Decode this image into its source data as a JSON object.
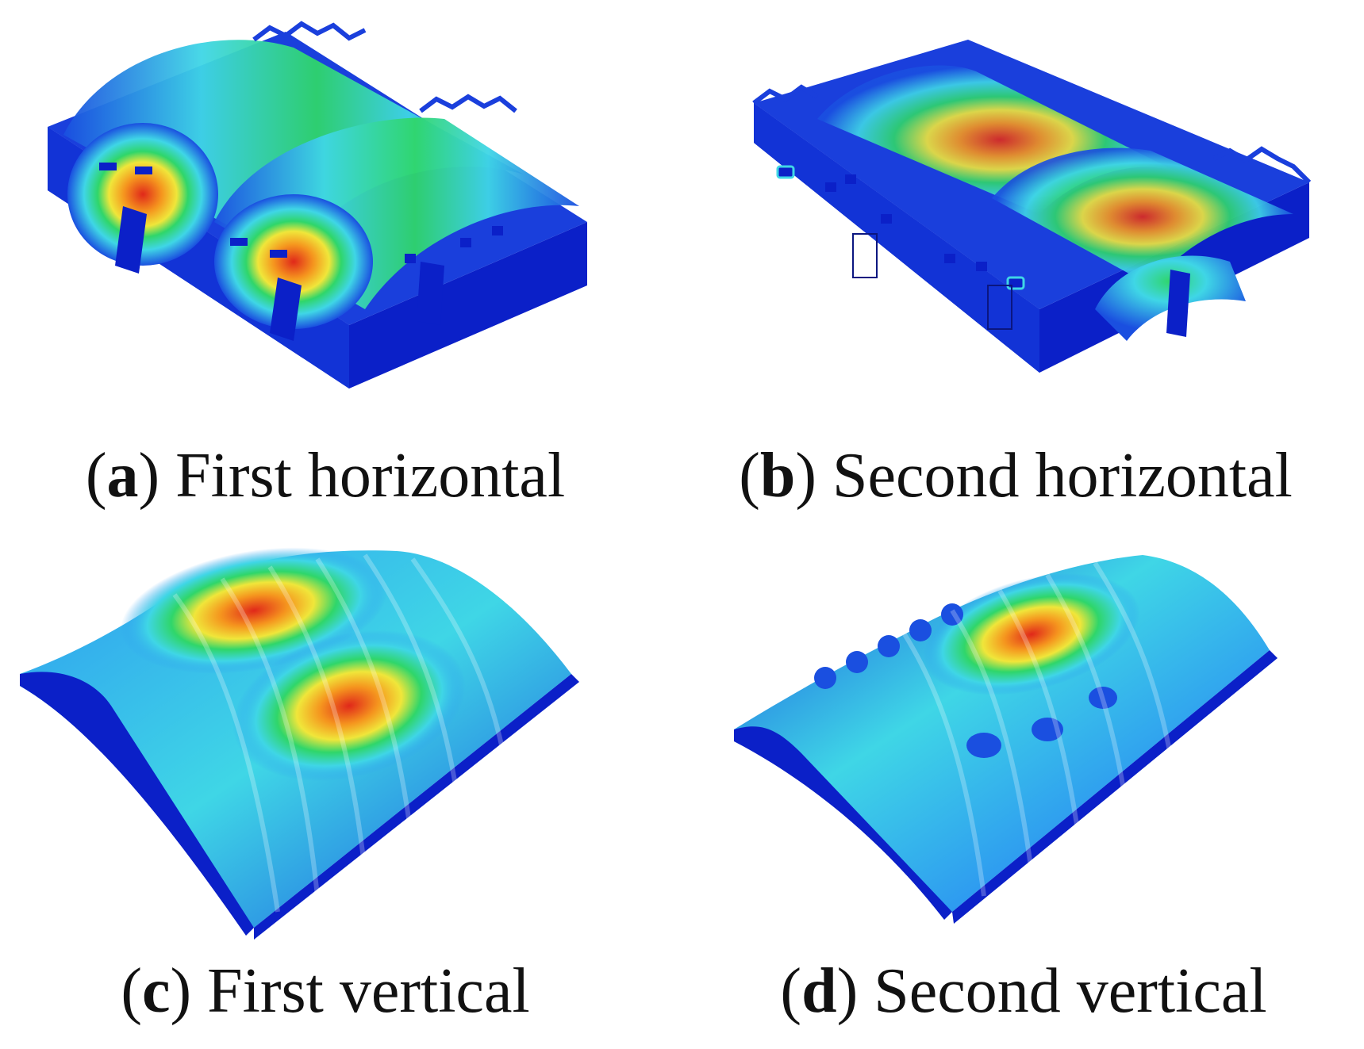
{
  "figure": {
    "colors": {
      "deep_blue": "#0b20c8",
      "blue": "#1a4fe0",
      "light_blue": "#2e9bf0",
      "cyan": "#3fd6e6",
      "green": "#2fd66a",
      "yellow_green": "#b6e83a",
      "yellow": "#f0e63a",
      "orange": "#f5951e",
      "red": "#e0281a"
    },
    "panels": [
      {
        "id": "a",
        "letter": "a",
        "text": "First horizontal"
      },
      {
        "id": "b",
        "letter": "b",
        "text": "Second horizontal"
      },
      {
        "id": "c",
        "letter": "c",
        "text": "First vertical"
      },
      {
        "id": "d",
        "letter": "d",
        "text": "Second vertical"
      }
    ]
  }
}
